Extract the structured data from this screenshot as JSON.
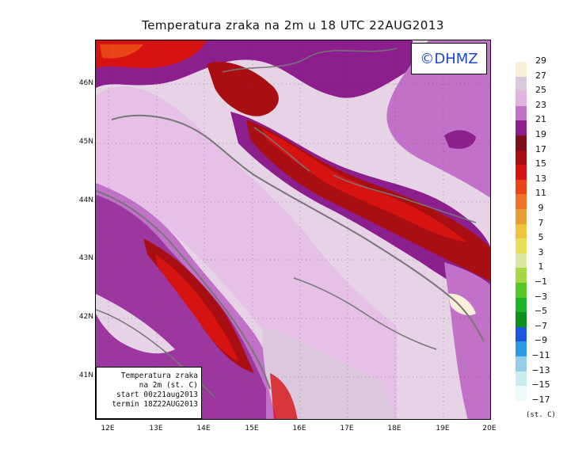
{
  "title": "Temperatura zraka na 2m u 18 UTC 22AUG2013",
  "copyright": "©DHMZ",
  "info_box": [
    "Temperatura zraka",
    "na 2m (st. C)",
    "start 00z21aug2013",
    "termin 18Z22AUG2013"
  ],
  "lat_labels": [
    "46N",
    "45N",
    "44N",
    "43N",
    "42N",
    "41N"
  ],
  "lon_labels": [
    "12E",
    "13E",
    "14E",
    "15E",
    "16E",
    "17E",
    "18E",
    "19E",
    "20E"
  ],
  "legend": {
    "labels": [
      "29",
      "27",
      "25",
      "23",
      "21",
      "19",
      "17",
      "15",
      "13",
      "11",
      "9",
      "7",
      "5",
      "3",
      "1",
      "−1",
      "−3",
      "−5",
      "−7",
      "−9",
      "−11",
      "−13",
      "−15",
      "−17"
    ],
    "colors": [
      "#fbeed8",
      "#dcc8dc",
      "#e2b4e2",
      "#c271c9",
      "#8c1f8d",
      "#7e0f1a",
      "#a80e12",
      "#d61311",
      "#ea4516",
      "#f07226",
      "#e79f35",
      "#eec43c",
      "#e8df57",
      "#dbe7a2",
      "#a6d846",
      "#57c628",
      "#1db52a",
      "#0f8f1e",
      "#1f56e0",
      "#2d9ce8",
      "#93cde7",
      "#c9ecef",
      "#edfbfa"
    ],
    "unit": "(st. C)"
  },
  "colors": {
    "land_dominant": "#e7d3e6",
    "sea": "#e2b4e2",
    "hot": "#d61311",
    "purple": "#8c1f8d",
    "coast": "#777777"
  }
}
